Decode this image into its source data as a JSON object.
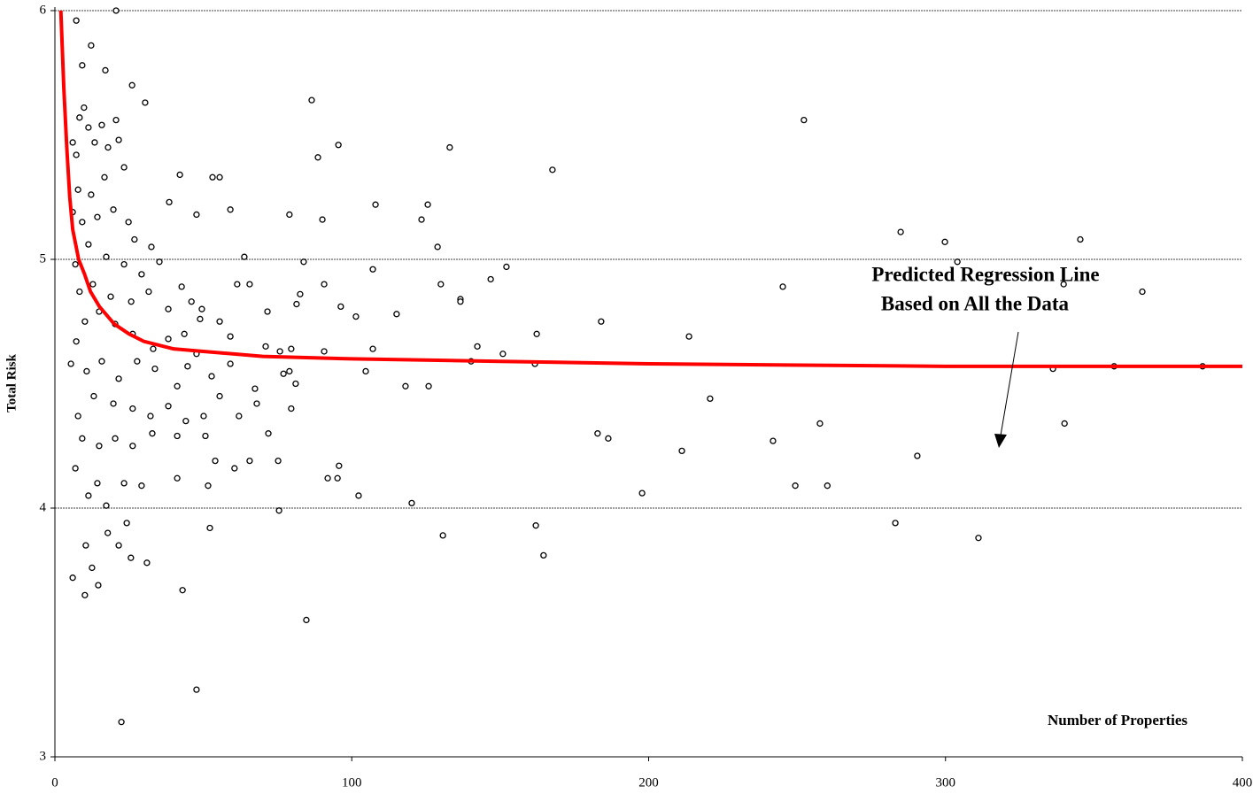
{
  "chart_data": {
    "type": "scatter",
    "xlabel": "Number of Properties",
    "ylabel": "Total Risk",
    "annotation": [
      "Predicted Regression Line",
      "Based on All the Data"
    ],
    "xlim": [
      0,
      400
    ],
    "xticks": [
      0,
      100,
      200,
      300,
      400
    ],
    "ylim": [
      3,
      6
    ],
    "yticks": [
      3,
      4,
      5,
      6
    ],
    "grid": true,
    "series": [
      {
        "type": "scatter",
        "color": "#000000",
        "x": [
          20.6,
          7.2,
          12.2,
          9.2,
          17.0,
          26.0,
          30.4,
          86.5,
          252.3,
          133.0,
          95.5,
          167.6,
          88.6,
          53.1,
          55.5,
          42.1,
          38.5,
          59.1,
          108.0,
          125.6,
          123.5,
          90.1,
          79.0,
          47.7,
          128.9,
          63.8,
          83.8,
          152.1,
          107.1,
          284.9,
          299.8,
          345.4,
          304.0,
          339.8,
          366.3,
          245.2,
          146.8,
          130.0,
          90.7,
          82.6,
          81.4,
          71.6,
          96.3,
          101.4,
          115.1,
          136.6,
          136.6,
          184.0,
          162.3,
          213.6,
          142.3,
          150.9,
          107.1,
          90.7,
          79.6,
          71.0,
          75.8,
          140.2,
          161.7,
          336.2,
          386.6,
          356.8,
          104.7,
          77.0,
          79.0,
          81.1,
          118.1,
          125.9,
          79.6,
          220.7,
          71.9,
          182.8,
          186.4,
          241.9,
          257.7,
          340.1,
          290.5,
          211.2,
          75.2,
          95.7,
          91.9,
          95.2,
          249.4,
          260.2,
          197.8,
          102.3,
          120.2,
          75.5,
          283.1,
          162.0,
          130.7,
          311.1,
          164.6,
          84.7,
          47.7,
          22.4,
          52.2,
          43.0,
          31.0,
          25.6,
          6.0,
          10.1,
          14.6,
          12.5,
          10.4,
          17.8,
          21.5,
          24.2,
          6.0,
          7.2,
          8.3,
          9.8,
          11.3,
          13.4,
          15.8,
          17.9,
          20.6,
          21.5,
          23.3,
          16.7,
          12.2,
          7.8,
          6.0,
          9.2,
          14.3,
          19.7,
          24.8,
          26.8,
          32.5,
          35.2,
          29.2,
          23.3,
          17.3,
          11.3,
          6.9,
          8.3,
          12.8,
          18.8,
          25.7,
          31.6,
          38.2,
          42.7,
          46.0,
          48.9,
          43.6,
          38.2,
          33.1,
          26.2,
          20.3,
          14.9,
          10.1,
          7.2,
          5.4,
          10.7,
          15.8,
          21.5,
          27.7,
          33.7,
          41.2,
          44.7,
          47.7,
          52.8,
          59.1,
          55.5,
          50.1,
          44.1,
          38.2,
          32.2,
          26.2,
          19.7,
          13.1,
          7.8,
          9.2,
          14.9,
          20.3,
          26.2,
          32.8,
          41.2,
          50.7,
          60.5,
          65.6,
          54.0,
          41.2,
          29.2,
          23.3,
          17.3,
          11.3,
          6.9,
          14.3,
          51.6,
          62.0,
          67.4,
          68.0,
          59.1,
          65.6,
          61.4,
          55.5,
          49.5
        ],
        "values": [
          6.0,
          5.96,
          5.86,
          5.78,
          5.76,
          5.7,
          5.63,
          5.64,
          5.56,
          5.45,
          5.46,
          5.36,
          5.41,
          5.33,
          5.33,
          5.34,
          5.23,
          5.2,
          5.22,
          5.22,
          5.16,
          5.16,
          5.18,
          5.18,
          5.05,
          5.01,
          4.99,
          4.97,
          4.96,
          5.11,
          5.07,
          5.08,
          4.99,
          4.9,
          4.87,
          4.89,
          4.92,
          4.9,
          4.9,
          4.86,
          4.82,
          4.79,
          4.81,
          4.77,
          4.78,
          4.84,
          4.83,
          4.75,
          4.7,
          4.69,
          4.65,
          4.62,
          4.64,
          4.63,
          4.64,
          4.65,
          4.63,
          4.59,
          4.58,
          4.56,
          4.57,
          4.57,
          4.55,
          4.54,
          4.55,
          4.5,
          4.49,
          4.49,
          4.4,
          4.44,
          4.3,
          4.3,
          4.28,
          4.27,
          4.34,
          4.34,
          4.21,
          4.23,
          4.19,
          4.17,
          4.12,
          4.12,
          4.09,
          4.09,
          4.06,
          4.05,
          4.02,
          3.99,
          3.94,
          3.93,
          3.89,
          3.88,
          3.81,
          3.55,
          3.27,
          3.14,
          3.92,
          3.67,
          3.78,
          3.8,
          3.72,
          3.65,
          3.69,
          3.76,
          3.85,
          3.9,
          3.85,
          3.94,
          5.47,
          5.42,
          5.57,
          5.61,
          5.53,
          5.47,
          5.54,
          5.45,
          5.56,
          5.48,
          5.37,
          5.33,
          5.26,
          5.28,
          5.19,
          5.15,
          5.17,
          5.2,
          5.15,
          5.08,
          5.05,
          4.99,
          4.94,
          4.98,
          5.01,
          5.06,
          4.98,
          4.87,
          4.9,
          4.85,
          4.83,
          4.87,
          4.8,
          4.89,
          4.83,
          4.76,
          4.7,
          4.68,
          4.64,
          4.7,
          4.74,
          4.79,
          4.75,
          4.67,
          4.58,
          4.55,
          4.59,
          4.52,
          4.59,
          4.56,
          4.49,
          4.57,
          4.62,
          4.53,
          4.58,
          4.45,
          4.37,
          4.35,
          4.41,
          4.37,
          4.4,
          4.42,
          4.45,
          4.37,
          4.28,
          4.25,
          4.28,
          4.25,
          4.3,
          4.29,
          4.29,
          4.16,
          4.19,
          4.19,
          4.12,
          4.09,
          4.1,
          4.01,
          4.05,
          4.16,
          4.1,
          4.09,
          4.37,
          4.48,
          4.42,
          4.69,
          4.9,
          4.9,
          4.75,
          4.8
        ]
      },
      {
        "type": "line",
        "color": "#ff0000",
        "x": [
          2,
          3,
          4,
          5,
          6,
          8,
          10,
          12,
          15,
          20,
          25,
          30,
          40,
          50,
          70,
          100,
          150,
          200,
          300,
          400
        ],
        "values": [
          6.0,
          5.69,
          5.45,
          5.25,
          5.12,
          5.0,
          4.94,
          4.87,
          4.81,
          4.74,
          4.7,
          4.67,
          4.64,
          4.63,
          4.61,
          4.6,
          4.59,
          4.58,
          4.57,
          4.57
        ]
      }
    ]
  }
}
